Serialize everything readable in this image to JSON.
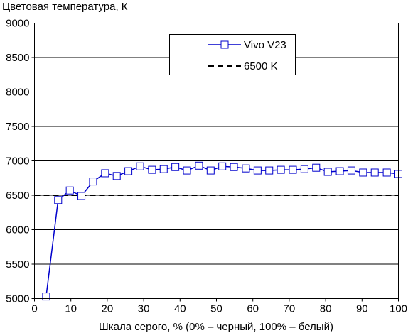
{
  "chart_data": {
    "type": "line",
    "ylabel": "Цветовая температура, К",
    "xlabel": "Шкала серого, % (0% – черный, 100% – белый)",
    "xlim": [
      0,
      100
    ],
    "ylim": [
      5000,
      9000
    ],
    "xticks": [
      0,
      10,
      20,
      30,
      40,
      50,
      60,
      70,
      80,
      90,
      100
    ],
    "yticks": [
      5000,
      5500,
      6000,
      6500,
      7000,
      7500,
      8000,
      8500,
      9000
    ],
    "grid": "horizontal",
    "legend_position": "top-center",
    "series": [
      {
        "name": "Vivo V23",
        "color": "#0000cc",
        "marker": "square",
        "x": [
          3.2,
          6.5,
          9.7,
          12.9,
          16.1,
          19.4,
          22.6,
          25.8,
          29.0,
          32.3,
          35.5,
          38.7,
          41.9,
          45.2,
          48.4,
          51.6,
          54.8,
          58.1,
          61.3,
          64.5,
          67.7,
          71.0,
          74.2,
          77.4,
          80.6,
          83.9,
          87.1,
          90.3,
          93.5,
          96.8,
          100
        ],
        "y": [
          5030,
          6430,
          6570,
          6490,
          6700,
          6820,
          6780,
          6850,
          6920,
          6870,
          6880,
          6910,
          6860,
          6930,
          6860,
          6920,
          6910,
          6890,
          6860,
          6860,
          6870,
          6870,
          6880,
          6900,
          6840,
          6850,
          6860,
          6830,
          6830,
          6830,
          6810
        ]
      },
      {
        "name": "6500 K",
        "color": "#000000",
        "style": "dashed",
        "x": [
          0,
          100
        ],
        "y": [
          6500,
          6500
        ]
      }
    ]
  }
}
